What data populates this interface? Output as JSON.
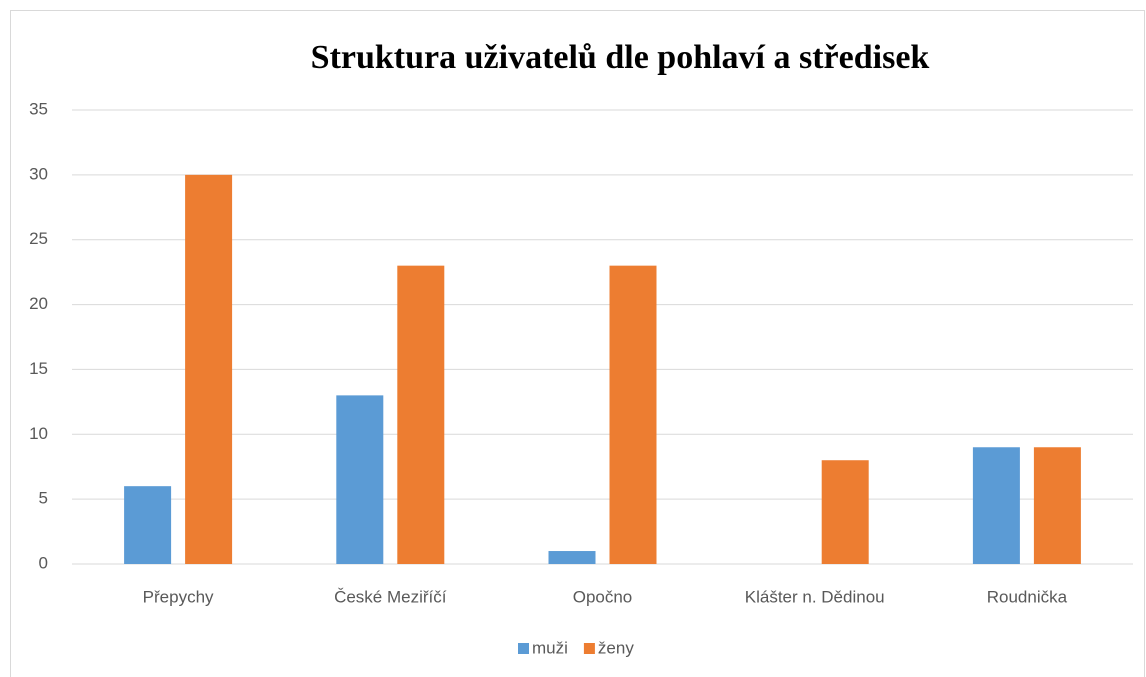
{
  "chart_data": {
    "type": "bar",
    "title": "Struktura uživatelů dle pohlaví a středisek",
    "categories": [
      "Přepychy",
      "České Meziříčí",
      "Opočno",
      "Klášter n. Dědinou",
      "Roudnička"
    ],
    "series": [
      {
        "name": "muži",
        "color": "#5b9bd5",
        "values": [
          6,
          13,
          1,
          0,
          9
        ]
      },
      {
        "name": "ženy",
        "color": "#ed7d31",
        "values": [
          30,
          23,
          23,
          8,
          9
        ]
      }
    ],
    "ylim": [
      0,
      35
    ],
    "yticks": [
      0,
      5,
      10,
      15,
      20,
      25,
      30,
      35
    ],
    "grid": true,
    "legend": "bottom"
  }
}
